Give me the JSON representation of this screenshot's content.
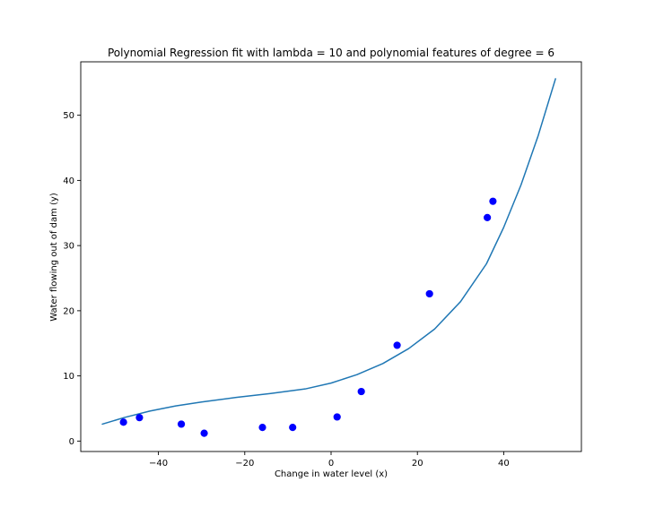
{
  "chart_data": {
    "type": "scatter",
    "title": "Polynomial Regression fit with lambda = 10 and polynomial features of degree = 6",
    "xlabel": "Change in water level (x)",
    "ylabel": "Water flowing out of dam (y)",
    "xlim": [
      -58,
      58
    ],
    "ylim": [
      -1.6,
      58.2
    ],
    "x_ticks": [
      -40,
      -20,
      0,
      20,
      40
    ],
    "x_tick_labels": [
      "−40",
      "−20",
      "0",
      "20",
      "40"
    ],
    "y_ticks": [
      0,
      10,
      20,
      30,
      40,
      50
    ],
    "y_tick_labels": [
      "0",
      "10",
      "20",
      "30",
      "40",
      "50"
    ],
    "grid": false,
    "series": [
      {
        "kind": "scatter",
        "color": "#0000ff",
        "points": [
          {
            "x": -48.1,
            "y": 2.9
          },
          {
            "x": -44.4,
            "y": 3.6
          },
          {
            "x": -34.7,
            "y": 2.6
          },
          {
            "x": -29.4,
            "y": 1.2
          },
          {
            "x": -15.9,
            "y": 2.1
          },
          {
            "x": -8.9,
            "y": 2.1
          },
          {
            "x": 1.4,
            "y": 3.7
          },
          {
            "x": 7.0,
            "y": 7.6
          },
          {
            "x": 15.3,
            "y": 14.7
          },
          {
            "x": 22.8,
            "y": 22.6
          },
          {
            "x": 36.2,
            "y": 34.3
          },
          {
            "x": 37.5,
            "y": 36.8
          }
        ]
      },
      {
        "kind": "line",
        "color": "#1f77b4",
        "points": [
          {
            "x": -53,
            "y": 2.6
          },
          {
            "x": -48,
            "y": 3.6
          },
          {
            "x": -42,
            "y": 4.6
          },
          {
            "x": -36,
            "y": 5.4
          },
          {
            "x": -30,
            "y": 6.0
          },
          {
            "x": -22,
            "y": 6.7
          },
          {
            "x": -14,
            "y": 7.3
          },
          {
            "x": -6,
            "y": 8.0
          },
          {
            "x": 0,
            "y": 8.9
          },
          {
            "x": 6,
            "y": 10.2
          },
          {
            "x": 12,
            "y": 11.9
          },
          {
            "x": 18,
            "y": 14.2
          },
          {
            "x": 24,
            "y": 17.2
          },
          {
            "x": 30,
            "y": 21.4
          },
          {
            "x": 36,
            "y": 27.2
          },
          {
            "x": 40,
            "y": 32.8
          },
          {
            "x": 44,
            "y": 39.3
          },
          {
            "x": 48,
            "y": 46.9
          },
          {
            "x": 52,
            "y": 55.6
          }
        ]
      }
    ]
  }
}
